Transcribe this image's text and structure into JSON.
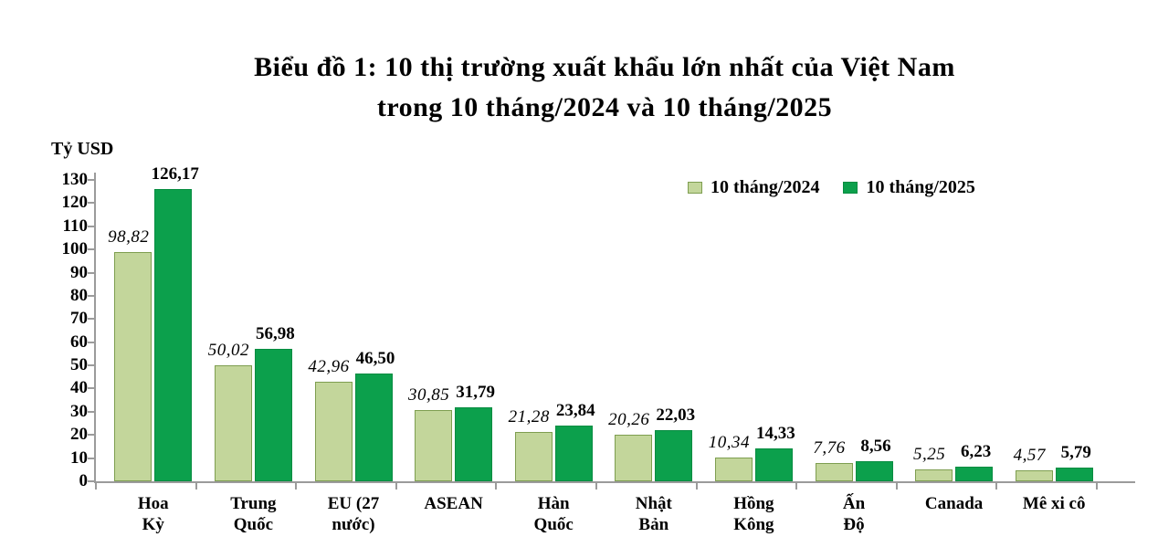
{
  "title": {
    "line1": "Biểu đồ 1: 10 thị trường xuất khẩu lớn nhất của Việt Nam",
    "line2": "trong 10 tháng/2024 và 10 tháng/2025"
  },
  "chart_data": {
    "type": "bar",
    "title": "Biểu đồ 1: 10 thị trường xuất khẩu lớn nhất của Việt Nam trong 10 tháng/2024 và 10 tháng/2025",
    "ylabel": "Tỷ USD",
    "xlabel": "",
    "ylim": [
      0,
      130
    ],
    "ytick_step": 10,
    "grid": false,
    "legend_position": "top-right",
    "decimal_separator": ",",
    "categories": [
      "Hoa Kỳ",
      "Trung Quốc",
      "EU (27 nước)",
      "ASEAN",
      "Hàn Quốc",
      "Nhật Bản",
      "Hồng Kông",
      "Ấn Độ",
      "Canada",
      "Mê xi cô"
    ],
    "category_display_lines": [
      [
        "Hoa",
        "Kỳ"
      ],
      [
        "Trung",
        "Quốc"
      ],
      [
        "EU (27",
        "nước)"
      ],
      [
        "ASEAN"
      ],
      [
        "Hàn",
        "Quốc"
      ],
      [
        "Nhật",
        "Bản"
      ],
      [
        "Hồng",
        "Kông"
      ],
      [
        "Ấn",
        "Độ"
      ],
      [
        "Canada"
      ],
      [
        "Mê xi cô"
      ]
    ],
    "series": [
      {
        "name": "10 tháng/2024",
        "color": "#c3d69b",
        "border_color": "#7e9e50",
        "label_style": "italic",
        "values": [
          98.82,
          50.02,
          42.96,
          30.85,
          21.28,
          20.26,
          10.34,
          7.76,
          5.25,
          4.57
        ]
      },
      {
        "name": "10 tháng/2025",
        "color": "#0ca04c",
        "border_color": "#078c41",
        "label_style": "bold",
        "values": [
          126.17,
          56.98,
          46.5,
          31.79,
          23.84,
          22.03,
          14.33,
          8.56,
          6.23,
          5.79
        ]
      }
    ]
  },
  "colors": {
    "axis": "#9b9b9b",
    "text": "#000000",
    "background": "#ffffff"
  }
}
